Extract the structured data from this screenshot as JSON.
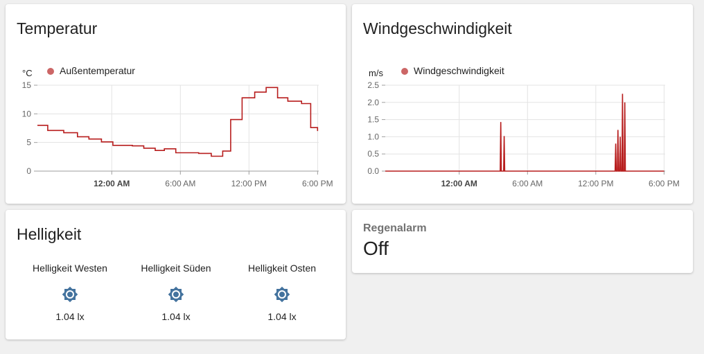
{
  "temperature_card": {
    "title": "Temperatur",
    "unit": "°C",
    "legend": "Außentemperatur"
  },
  "wind_card": {
    "title": "Windgeschwindigkeit",
    "unit": "m/s",
    "legend": "Windgeschwindigkeit"
  },
  "light_card": {
    "title": "Helligkeit",
    "items": [
      {
        "name": "Helligkeit Westen",
        "value": "1.04 lx",
        "icon": "brightness-icon"
      },
      {
        "name": "Helligkeit Süden",
        "value": "1.04 lx",
        "icon": "brightness-icon"
      },
      {
        "name": "Helligkeit Osten",
        "value": "1.04 lx",
        "icon": "brightness-icon"
      }
    ]
  },
  "rain_card": {
    "label": "Regenalarm",
    "value": "Off"
  },
  "colors": {
    "line": "#b71c1c",
    "legend_dot": "#cc6666",
    "icon": "#44739e"
  },
  "chart_data": [
    {
      "type": "line",
      "title": "",
      "xlabel": "",
      "ylabel": "°C",
      "legend": "top-left",
      "grid": true,
      "series_color": "#b71c1c",
      "xlim": [
        -6.5,
        18.1
      ],
      "ylim": [
        0,
        15
      ],
      "yticks": [
        0,
        5,
        10,
        15
      ],
      "xticks": [
        {
          "value": 0,
          "label": "12:00 AM",
          "bold": true
        },
        {
          "value": 6,
          "label": "6:00 AM",
          "bold": false
        },
        {
          "value": 12,
          "label": "12:00 PM",
          "bold": false
        },
        {
          "value": 18,
          "label": "6:00 PM",
          "bold": false
        }
      ],
      "series": [
        {
          "name": "Außentemperatur",
          "step": true,
          "x": [
            -6.5,
            -5.6,
            -4.2,
            -3.0,
            -2.0,
            -0.9,
            0.1,
            1.8,
            2.8,
            3.8,
            4.6,
            5.6,
            7.6,
            8.7,
            9.7,
            10.4,
            11.4,
            12.5,
            13.5,
            14.5,
            15.4,
            16.6,
            17.4,
            18.0
          ],
          "y": [
            8.0,
            7.1,
            6.7,
            6.0,
            5.6,
            5.1,
            4.5,
            4.4,
            4.0,
            3.6,
            3.9,
            3.2,
            3.1,
            2.6,
            3.5,
            9.0,
            12.8,
            13.8,
            14.6,
            12.8,
            12.2,
            11.8,
            7.6,
            7.0
          ]
        }
      ]
    },
    {
      "type": "line",
      "title": "",
      "xlabel": "",
      "ylabel": "m/s",
      "legend": "top-left",
      "grid": true,
      "series_color": "#b71c1c",
      "xlim": [
        -6.5,
        18.1
      ],
      "ylim": [
        0,
        2.5
      ],
      "yticks": [
        0,
        0.5,
        1.0,
        1.5,
        2.0,
        2.5
      ],
      "xticks": [
        {
          "value": 0,
          "label": "12:00 AM",
          "bold": true
        },
        {
          "value": 6,
          "label": "6:00 AM",
          "bold": false
        },
        {
          "value": 12,
          "label": "12:00 PM",
          "bold": false
        },
        {
          "value": 18,
          "label": "6:00 PM",
          "bold": false
        }
      ],
      "series": [
        {
          "name": "Windgeschwindigkeit",
          "step": false,
          "x": [
            -6.5,
            3.6,
            3.65,
            3.7,
            3.9,
            3.95,
            4.0,
            13.7,
            13.75,
            13.8,
            13.9,
            13.95,
            14.0,
            14.1,
            14.15,
            14.2,
            14.3,
            14.35,
            14.4,
            14.5,
            14.55,
            14.6,
            18.0
          ],
          "y": [
            0,
            0,
            1.43,
            0,
            0,
            1.02,
            0,
            0,
            0.8,
            0,
            0,
            1.2,
            0,
            0,
            1.0,
            0,
            0,
            2.25,
            0,
            0,
            2.0,
            0,
            0
          ]
        }
      ]
    }
  ]
}
